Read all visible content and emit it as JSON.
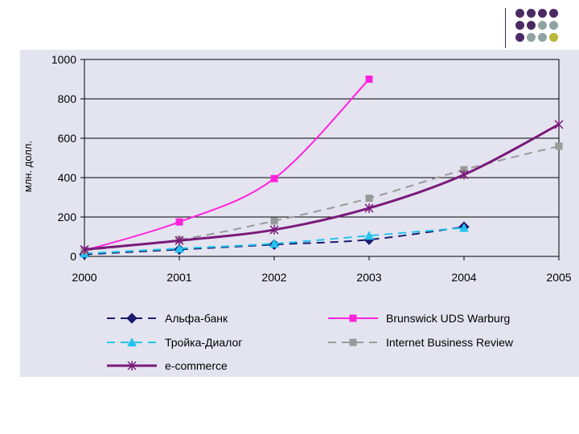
{
  "decoration": {
    "dot_colors": [
      "#4b2a63",
      "#8fa3a3",
      "#b8b83a"
    ],
    "dot_grid": [
      [
        0,
        0,
        0,
        0
      ],
      [
        0,
        0,
        1,
        1
      ],
      [
        0,
        1,
        1,
        2
      ]
    ]
  },
  "chart_data": {
    "type": "line",
    "title": "",
    "xlabel": "",
    "ylabel": "млн. долл.",
    "xlim": [
      2000,
      2005
    ],
    "ylim": [
      0,
      1000
    ],
    "yticks": [
      0,
      200,
      400,
      600,
      800,
      1000
    ],
    "xticks": [
      2000,
      2001,
      2002,
      2003,
      2004,
      2005
    ],
    "grid": "horizontal",
    "legend_position": "bottom",
    "series": [
      {
        "name": "Альфа-банк",
        "color": "#1a1a6e",
        "dash": "dashed",
        "marker": "diamond",
        "x": [
          2000,
          2001,
          2002,
          2003,
          2004
        ],
        "y": [
          10,
          35,
          60,
          85,
          150
        ]
      },
      {
        "name": "Brunswick UDS Warburg",
        "color": "#ff22dd",
        "dash": "solid",
        "marker": "square",
        "x": [
          2000,
          2001,
          2002,
          2003
        ],
        "y": [
          30,
          175,
          395,
          900
        ]
      },
      {
        "name": "Тройка-Диалог",
        "color": "#22c4ee",
        "dash": "dashed",
        "marker": "triangle",
        "x": [
          2000,
          2001,
          2002,
          2003,
          2004
        ],
        "y": [
          15,
          40,
          65,
          105,
          145
        ]
      },
      {
        "name": "Internet Business Review",
        "color": "#999999",
        "dash": "dashed",
        "marker": "square",
        "x": [
          2000,
          2001,
          2002,
          2003,
          2004,
          2005
        ],
        "y": [
          30,
          85,
          180,
          295,
          440,
          560
        ]
      },
      {
        "name": "e-commerce",
        "color": "#7a1a7a",
        "dash": "solid",
        "marker": "star",
        "x": [
          2000,
          2001,
          2002,
          2003,
          2004,
          2005
        ],
        "y": [
          35,
          80,
          135,
          245,
          415,
          670
        ]
      }
    ]
  }
}
